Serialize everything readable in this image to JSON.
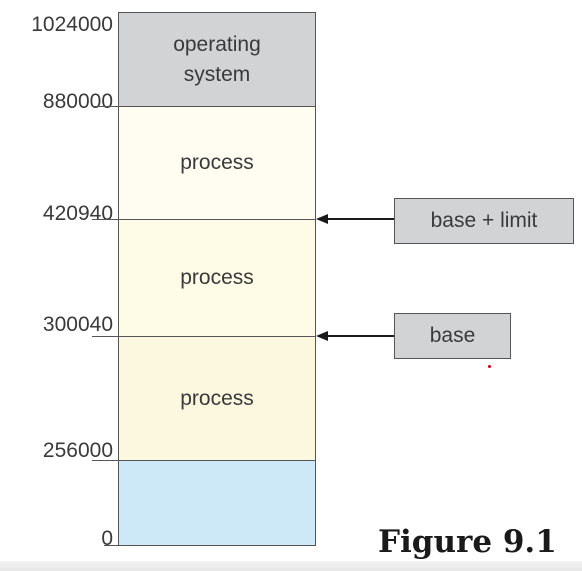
{
  "addresses": {
    "top": "1024000",
    "os_bottom": "880000",
    "limit": "420940",
    "base": "300040",
    "p3_bottom": "256000",
    "zero": "0"
  },
  "memory_blocks": {
    "os_line1": "operating",
    "os_line2": "system",
    "process1": "process",
    "process2": "process",
    "process3": "process"
  },
  "registers": {
    "limit_label": "base + limit",
    "base_label": "base"
  },
  "caption": "Figure 9.1",
  "colors": {
    "os": "#d2d3d5",
    "process": "#fefbe6",
    "free": "#cde9f7",
    "register": "#d2d3d5"
  }
}
